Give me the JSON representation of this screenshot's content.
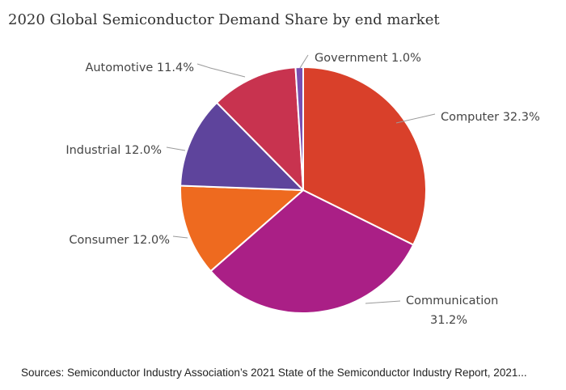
{
  "chart_data": {
    "type": "pie",
    "title": "2020 Global Semiconductor Demand Share by end market",
    "source": "Sources: Semiconductor Industry Association’s 2021 State of the Semiconductor Industry Report, 2021...",
    "unit": "%",
    "slices": [
      {
        "label": "Computer",
        "display": "Computer 32.3%",
        "value": 32.3,
        "color": "#D9402A"
      },
      {
        "label": "Communication",
        "display_lines": [
          "Communication",
          "31.2%"
        ],
        "value": 31.2,
        "color": "#AA1F86"
      },
      {
        "label": "Consumer",
        "display": "Consumer 12.0%",
        "value": 12.0,
        "color": "#EE6A1F"
      },
      {
        "label": "Industrial",
        "display": "Industrial 12.0%",
        "value": 12.0,
        "color": "#5E449C"
      },
      {
        "label": "Automotive",
        "display": "Automotive 11.4%",
        "value": 11.4,
        "color": "#C8334F"
      },
      {
        "label": "Government",
        "display": "Government 1.0%",
        "value": 1.0,
        "color": "#7A4FB0"
      }
    ],
    "start_angle": "12 o'clock",
    "direction": "clockwise",
    "legend": "none"
  }
}
